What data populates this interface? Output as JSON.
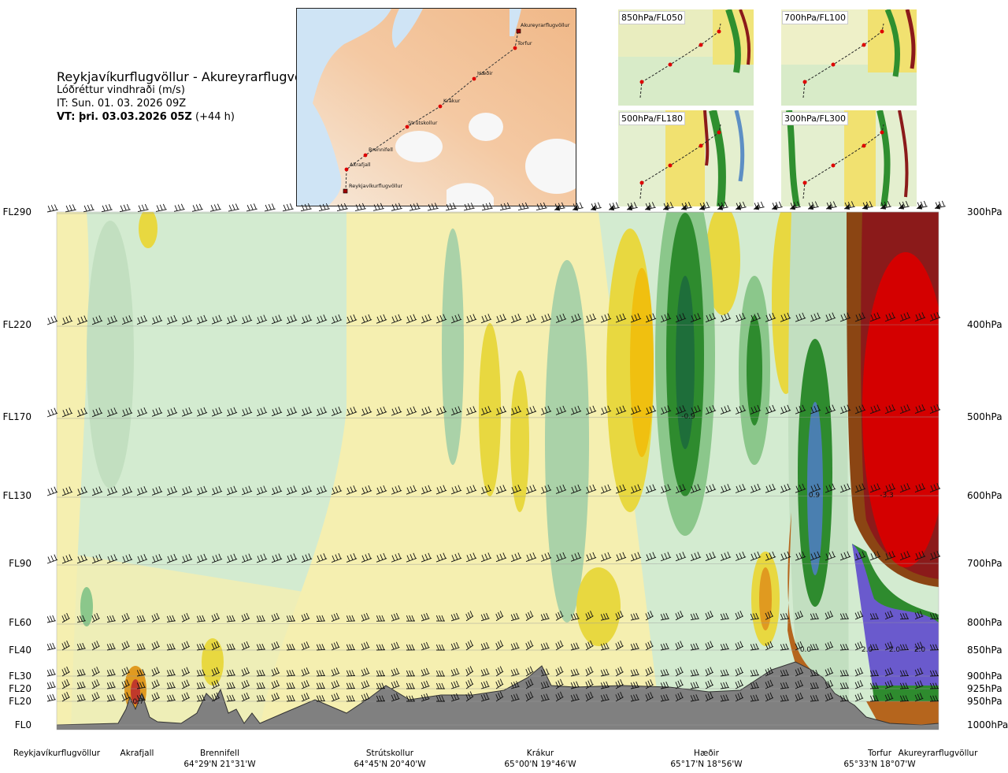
{
  "header": {
    "route": "Reykjavíkurflugvöllur - Akureyrarflugvöllur",
    "variable": "Lóðréttur vindhraði (m/s)",
    "issue_time": "IT: Sun. 01. 03. 2026 09Z",
    "valid_prefix": "VT: þri. 03.03.2026 05Z",
    "valid_suffix": "(+44 h)"
  },
  "overview_map": {
    "waypoints": [
      "Reykjavíkurflugvöllur",
      "Akrafjall",
      "Brennifell",
      "Strútskollur",
      "Krákur",
      "Hæðir",
      "Torfur",
      "Akureyrarflugvöllur"
    ]
  },
  "level_maps": [
    {
      "label": "850hPa/FL050"
    },
    {
      "label": "700hPa/FL100"
    },
    {
      "label": "500hPa/FL180"
    },
    {
      "label": "300hPa/FL300"
    }
  ],
  "colors": {
    "terrain": "#808080",
    "strong_down": "#8b1a1a",
    "down": "#d40000",
    "weak_down": "#e8d840",
    "neutral": "#f5efb0",
    "weak_up": "#d3ebd0",
    "up": "#2e8b2e",
    "strong_up": "#6a5acd"
  },
  "chart_data": {
    "type": "heatmap",
    "title": "Lóðréttur vindhraði (m/s)",
    "y_axis_left": [
      "FL290",
      "FL220",
      "FL170",
      "FL130",
      "FL90",
      "FL60",
      "FL40",
      "FL30",
      "FL20",
      "FL20",
      "FL0"
    ],
    "y_axis_right": [
      "300hPa",
      "400hPa",
      "500hPa",
      "600hPa",
      "700hPa",
      "800hPa",
      "850hPa",
      "900hPa",
      "925hPa",
      "950hPa",
      "1000hPa"
    ],
    "pressure_levels_hpa": [
      300,
      400,
      500,
      600,
      700,
      800,
      850,
      900,
      925,
      950,
      1000
    ],
    "x_stations": [
      {
        "name": "Reykjavíkurflugvöllur",
        "coord": ""
      },
      {
        "name": "Akrafjall",
        "coord": ""
      },
      {
        "name": "Brennifell",
        "coord": "64°29'N 21°31'W"
      },
      {
        "name": "Strútskollur",
        "coord": "64°45'N 20°40'W"
      },
      {
        "name": "Krákur",
        "coord": "65°00'N 19°46'W"
      },
      {
        "name": "Hæðir",
        "coord": "65°17'N 18°56'W"
      },
      {
        "name": "Torfur",
        "coord": "65°33'N 18°07'W"
      },
      {
        "name": "Akureyrarflugvöllur",
        "coord": ""
      }
    ],
    "annotations": [
      "-0.9",
      "0.9",
      "-3.3",
      "0.0",
      "2.0",
      "2.0",
      "2.0",
      "-0.7"
    ]
  }
}
